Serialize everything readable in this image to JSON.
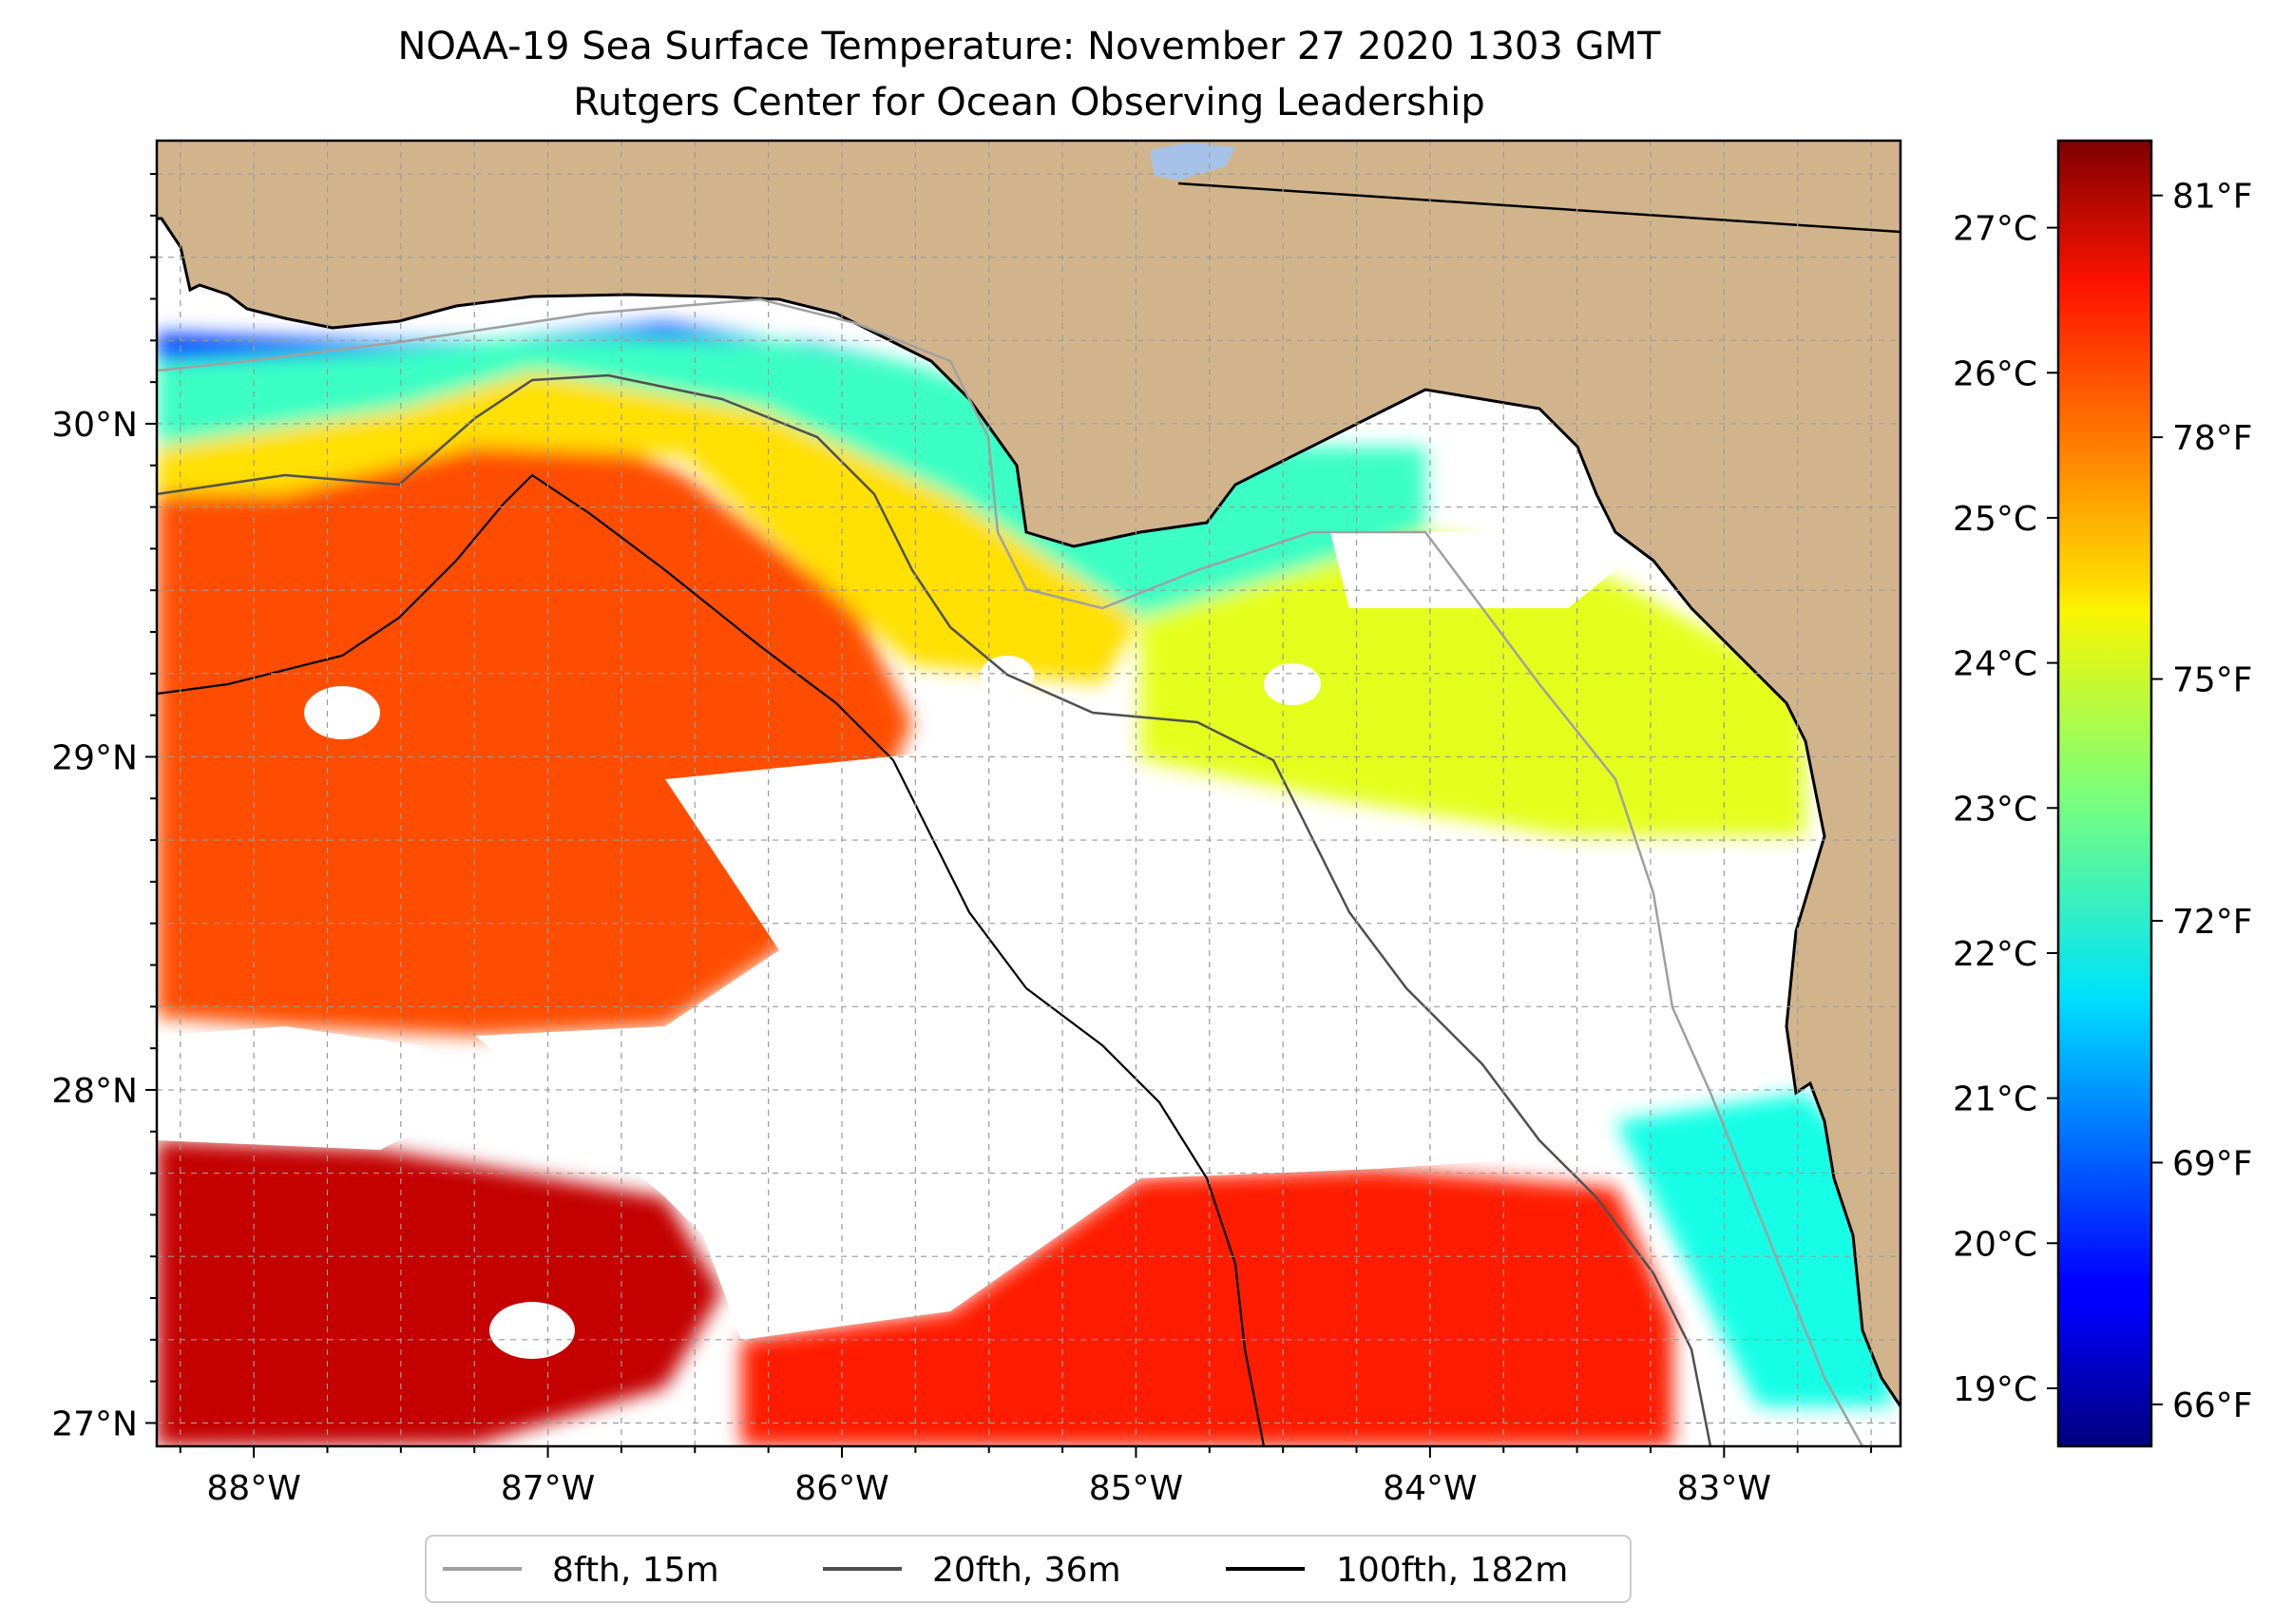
{
  "title": {
    "line1": "NOAA-19 Sea Surface Temperature: November 27 2020 1303 GMT",
    "line2": "Rutgers Center for Ocean Observing Leadership"
  },
  "map": {
    "lon_range": [
      -88.33,
      -82.4
    ],
    "lat_range": [
      26.93,
      30.85
    ],
    "lon_ticks": [
      {
        "value": -88,
        "label": "88°W"
      },
      {
        "value": -87,
        "label": "87°W"
      },
      {
        "value": -86,
        "label": "86°W"
      },
      {
        "value": -85,
        "label": "85°W"
      },
      {
        "value": -84,
        "label": "84°W"
      },
      {
        "value": -83,
        "label": "83°W"
      }
    ],
    "lat_ticks": [
      {
        "value": 30,
        "label": "30°N"
      },
      {
        "value": 29,
        "label": "29°N"
      },
      {
        "value": 28,
        "label": "28°N"
      },
      {
        "value": 27,
        "label": "27°N"
      }
    ],
    "gridlines": "dashed",
    "colors": {
      "land": "#d2b48c",
      "no_data": "#ffffff",
      "lake": "#a6c2e8",
      "isobath_8fth": "#a0a0a0",
      "isobath_20fth": "#505050",
      "isobath_100fth": "#000000",
      "coastline": "#000000"
    },
    "regions": [
      {
        "name": "north-shelf-cold-band",
        "temp_c": 20.3
      },
      {
        "name": "north-shelf-mid-band",
        "temp_c": 22.5
      },
      {
        "name": "north-shelf-warm-band",
        "temp_c": 24.5
      },
      {
        "name": "west-open-gulf",
        "temp_c": 25.8
      },
      {
        "name": "southwest-warm-eddy",
        "temp_c": 27.0
      },
      {
        "name": "big-bend-shelf",
        "temp_c": 24.0
      },
      {
        "name": "southeast-shelf",
        "temp_c": 22.2
      },
      {
        "name": "south-open-gulf",
        "temp_c": 26.2
      }
    ]
  },
  "colorbar": {
    "cmap": "jet",
    "celsius_range": [
      18.6,
      27.6
    ],
    "celsius_ticks": [
      "19°C",
      "20°C",
      "21°C",
      "22°C",
      "23°C",
      "24°C",
      "25°C",
      "26°C",
      "27°C"
    ],
    "celsius_values": [
      19,
      20,
      21,
      22,
      23,
      24,
      25,
      26,
      27
    ],
    "fahrenheit_ticks": [
      "66°F",
      "69°F",
      "72°F",
      "75°F",
      "78°F",
      "81°F"
    ],
    "fahrenheit_values": [
      66,
      69,
      72,
      75,
      78,
      81
    ]
  },
  "legend": {
    "items": [
      {
        "label": "8fth, 15m",
        "color": "#a0a0a0"
      },
      {
        "label": "20fth, 36m",
        "color": "#505050"
      },
      {
        "label": "100fth, 182m",
        "color": "#000000"
      }
    ]
  }
}
